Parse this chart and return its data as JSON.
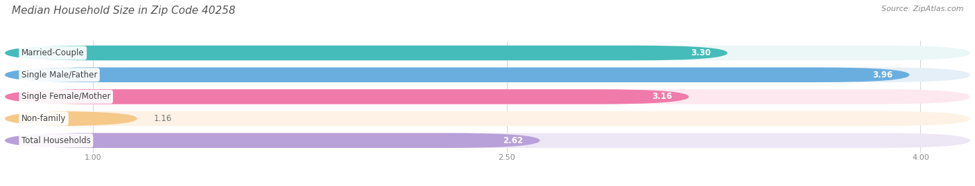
{
  "title": "Median Household Size in Zip Code 40258",
  "source": "Source: ZipAtlas.com",
  "categories": [
    "Married-Couple",
    "Single Male/Father",
    "Single Female/Mother",
    "Non-family",
    "Total Households"
  ],
  "values": [
    3.3,
    3.96,
    3.16,
    1.16,
    2.62
  ],
  "bar_colors": [
    "#45BCBA",
    "#6AAEE0",
    "#F07AAA",
    "#F5C98A",
    "#B8A0D8"
  ],
  "bar_bg_colors": [
    "#EAF7F6",
    "#E4EFF8",
    "#FDE8F0",
    "#FDF2E5",
    "#EDE6F5"
  ],
  "value_inside_color": "#FFFFFF",
  "value_outside_color": "#777777",
  "inside_threshold": 1.8,
  "xlim_left": 0.68,
  "xlim_right": 4.18,
  "xmin": 1.0,
  "xmax": 4.0,
  "xticks": [
    1.0,
    2.5,
    4.0
  ],
  "xtick_labels": [
    "1.00",
    "2.50",
    "4.00"
  ],
  "title_fontsize": 11,
  "label_fontsize": 8.5,
  "value_fontsize": 8.5,
  "source_fontsize": 8,
  "bg_color": "#FFFFFF",
  "bar_height": 0.68,
  "bar_gap": 1.0
}
